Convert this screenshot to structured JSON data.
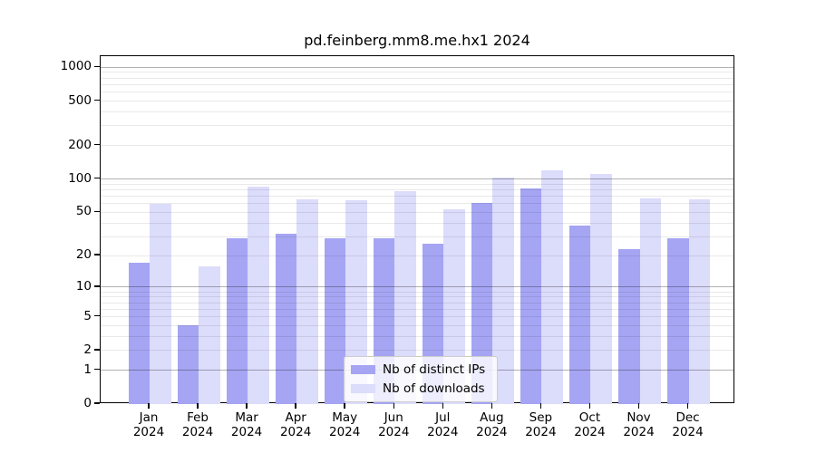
{
  "chart_data": {
    "type": "bar",
    "title": "pd.feinberg.mm8.me.hx1 2024",
    "categories": [
      "Jan",
      "Feb",
      "Mar",
      "Apr",
      "May",
      "Jun",
      "Jul",
      "Aug",
      "Sep",
      "Oct",
      "Nov",
      "Dec"
    ],
    "category_year": "2024",
    "series": [
      {
        "name": "Nb of distinct IPs",
        "color": "#a5a5f3",
        "values": [
          17,
          4,
          29,
          32,
          29,
          29,
          26,
          61,
          82,
          38,
          23,
          29
        ]
      },
      {
        "name": "Nb of downloads",
        "color": "#dcdcfb",
        "values": [
          60,
          16,
          86,
          66,
          64,
          78,
          53,
          103,
          120,
          111,
          67,
          66
        ]
      }
    ],
    "yscale": "log1p",
    "ylim": [
      0,
      1250
    ],
    "yticks": [
      0,
      1,
      2,
      5,
      10,
      20,
      50,
      100,
      200,
      500,
      1000
    ],
    "gridlines": {
      "major": [
        1,
        10,
        100,
        1000
      ],
      "minor": [
        2,
        3,
        4,
        5,
        6,
        7,
        8,
        9,
        20,
        30,
        40,
        50,
        60,
        70,
        80,
        90,
        200,
        300,
        400,
        500,
        600,
        700,
        800,
        900
      ]
    },
    "grid": "on",
    "legend_position": "lower-center",
    "xlabel": "",
    "ylabel": ""
  }
}
